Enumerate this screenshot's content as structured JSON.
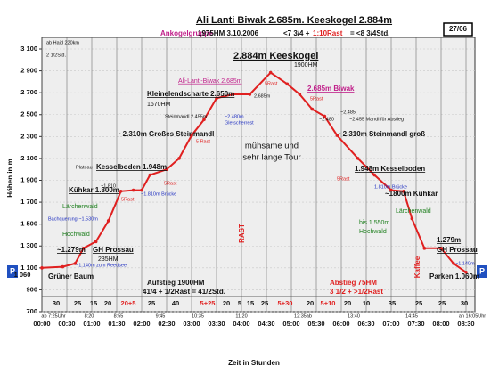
{
  "chart_data": {
    "type": "line",
    "title": "Ali Lanti Biwak 2.685m.  Keeskogel 2.884m",
    "subtitle_parts": [
      "Ankogelgruppe",
      "1975HM  3.10.2006",
      "<7 3/4 +",
      "1:10Rast",
      "= <8 3/4Std."
    ],
    "badge": "27/06",
    "x_label": "Zeit in Stunden",
    "y_label": "Höhen in m",
    "x": [
      0,
      25,
      40,
      50,
      65,
      80,
      95,
      110,
      120,
      130,
      150,
      165,
      180,
      195,
      210,
      230,
      250,
      275,
      295,
      310,
      325,
      340,
      355,
      380,
      400,
      420,
      435,
      445,
      460,
      480,
      495,
      510
    ],
    "series": [
      {
        "color": "#e02020",
        "values": [
          1100,
          1110,
          1140,
          1279,
          1340,
          1530,
          1800,
          1810,
          1810,
          1948,
          2000,
          2100,
          2310,
          2455,
          2650,
          2685,
          2685,
          2884,
          2780,
          2685,
          2550,
          2485,
          2310,
          2100,
          1948,
          1810,
          1800,
          1550,
          1279,
          1279,
          1140,
          1060
        ]
      }
    ],
    "xlim": [
      0,
      510
    ],
    "xticks": [
      {
        "value": 0,
        "label": "00:00"
      },
      {
        "value": 30,
        "label": "00:30"
      },
      {
        "value": 60,
        "label": "01:00"
      },
      {
        "value": 90,
        "label": "01:30"
      },
      {
        "value": 120,
        "label": "02:00"
      },
      {
        "value": 150,
        "label": "02:30"
      },
      {
        "value": 180,
        "label": "03:00"
      },
      {
        "value": 210,
        "label": "03:30"
      },
      {
        "value": 240,
        "label": "04:00"
      },
      {
        "value": 270,
        "label": "04:30"
      },
      {
        "value": 300,
        "label": "05:00"
      },
      {
        "value": 330,
        "label": "05:30"
      },
      {
        "value": 360,
        "label": "06:00"
      },
      {
        "value": 390,
        "label": "06:30"
      },
      {
        "value": 420,
        "label": "07:00"
      },
      {
        "value": 450,
        "label": "07:30"
      },
      {
        "value": 480,
        "label": "08:00"
      },
      {
        "value": 510,
        "label": "08:30"
      }
    ],
    "ylim": [
      700,
      3100
    ],
    "yticks": [
      700,
      900,
      {
        "value": 1100,
        "label": "1 100"
      },
      {
        "value": 1300,
        "label": "1 300"
      },
      {
        "value": 1500,
        "label": "1 500"
      },
      {
        "value": 1700,
        "label": "1 700"
      },
      {
        "value": 1900,
        "label": "1 900"
      },
      {
        "value": 2100,
        "label": "2 100"
      },
      {
        "value": 2300,
        "label": "2 300"
      },
      {
        "value": 2500,
        "label": "2 500"
      },
      {
        "value": 2700,
        "label": "2 700"
      },
      {
        "value": 2900,
        "label": "2 900"
      },
      {
        "value": 3100,
        "label": "3 100"
      }
    ],
    "grid": true,
    "segment_labels": [
      "30",
      "25",
      "15",
      "20",
      "20+5",
      "25",
      "40",
      "5+25",
      "20",
      "5",
      "15",
      "25",
      "5+30",
      "20",
      "5+10",
      "20",
      "10",
      "35",
      "25",
      "25",
      "30"
    ],
    "clock_times": [
      "ab 7:25Uhr",
      "8:20",
      "8:55",
      "9:45",
      "10:35",
      "11:20",
      "12:35ab",
      "13:40",
      "14:45",
      "an 16:05Uhr"
    ],
    "annotations": [
      "ab Haid  220km",
      "2 1/2Std.",
      "2.884m Keeskogel",
      "1900HM",
      "Ali-Lanti-Biwak 2.685m",
      "2.685m Biwak",
      "5Rast",
      "Kleinelendscharte 2.650m",
      "1670HM",
      "2.685m",
      "5Rast",
      "Steinmandl 2.455m",
      "~2.480m",
      "Gletscherrest",
      "~2.485",
      "~2.480",
      "~2.455 Mandl für Abstieg",
      "~2.310m Großes Steinmandl",
      "~2.310m Steinmandl groß",
      "5 Rast",
      "mühsame und",
      "sehr lange Tour",
      "Plateau",
      "Kesselboden 1.948m",
      "1.948m Kesselboden",
      "5Rast",
      "~1.810",
      "1.810m Brücke",
      "~1800m Kühkar",
      "Kühkar 1.800m",
      "5Rast",
      "5Rast",
      "~1.810m Brücke",
      "Lärchenwald",
      "Lärchenwald",
      "Hochwald",
      "bis 1.550m",
      "Hochwald",
      "Bachquerung ~1.530m",
      "~1.279m",
      "GH Prossau",
      "235HM",
      "~1.140m zum Reedsee",
      "Grüner Baum",
      "1.279m",
      "GH Prossau",
      "~1.140m",
      "Parken 1.060m",
      "RAST",
      "Kaffee",
      "Aufstieg 1900HM",
      "41/4 + 1/2Rast = 41/2Std.",
      "Abstieg 75HM",
      "3 1/2 + >1/2Rast",
      "P",
      "P",
      "1 060"
    ]
  }
}
